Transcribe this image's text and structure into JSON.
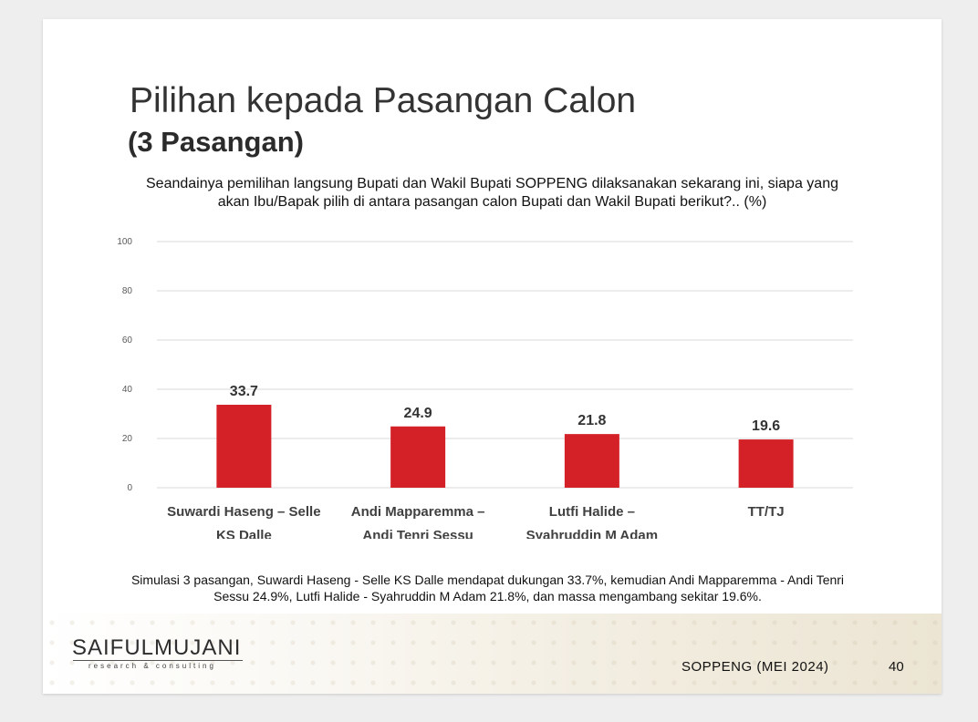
{
  "slide": {
    "title": "Pilihan kepada Pasangan Calon",
    "subtitle": "(3 Pasangan)",
    "question_lines": [
      "Seandainya pemilihan langsung Bupati dan Wakil Bupati SOPPENG dilaksanakan sekarang ini, siapa yang",
      "akan Ibu/Bapak pilih di antara pasangan calon Bupati dan Wakil Bupati berikut?.. (%)"
    ],
    "note_lines": [
      "Simulasi 3 pasangan, Suwardi Haseng - Selle KS Dalle mendapat dukungan 33.7%, kemudian Andi Mapparemma - Andi Tenri",
      "Sessu 24.9%, Lutfi Halide - Syahruddin M Adam 21.8%, dan massa mengambang sekitar 19.6%."
    ]
  },
  "footer": {
    "logo_main": "SAIFULMUJANI",
    "logo_sub": "research & consulting",
    "label": "SOPPENG (MEI 2024)",
    "page_number": "40"
  },
  "chart_data": {
    "type": "bar",
    "categories": [
      [
        "Suwardi Haseng – Selle",
        "KS Dalle"
      ],
      [
        "Andi Mapparemma –",
        "Andi Tenri Sessu"
      ],
      [
        "Lutfi Halide –",
        "Syahruddin M Adam"
      ],
      [
        "TT/TJ"
      ]
    ],
    "values": [
      33.7,
      24.9,
      21.8,
      19.6
    ],
    "value_labels": [
      "33.7",
      "24.9",
      "21.8",
      "19.6"
    ],
    "ylim": [
      0,
      100
    ],
    "yticks": [
      0,
      20,
      40,
      60,
      80,
      100
    ],
    "grid": true,
    "bar_color": "#d42027",
    "grid_color": "#d9d9d9"
  }
}
